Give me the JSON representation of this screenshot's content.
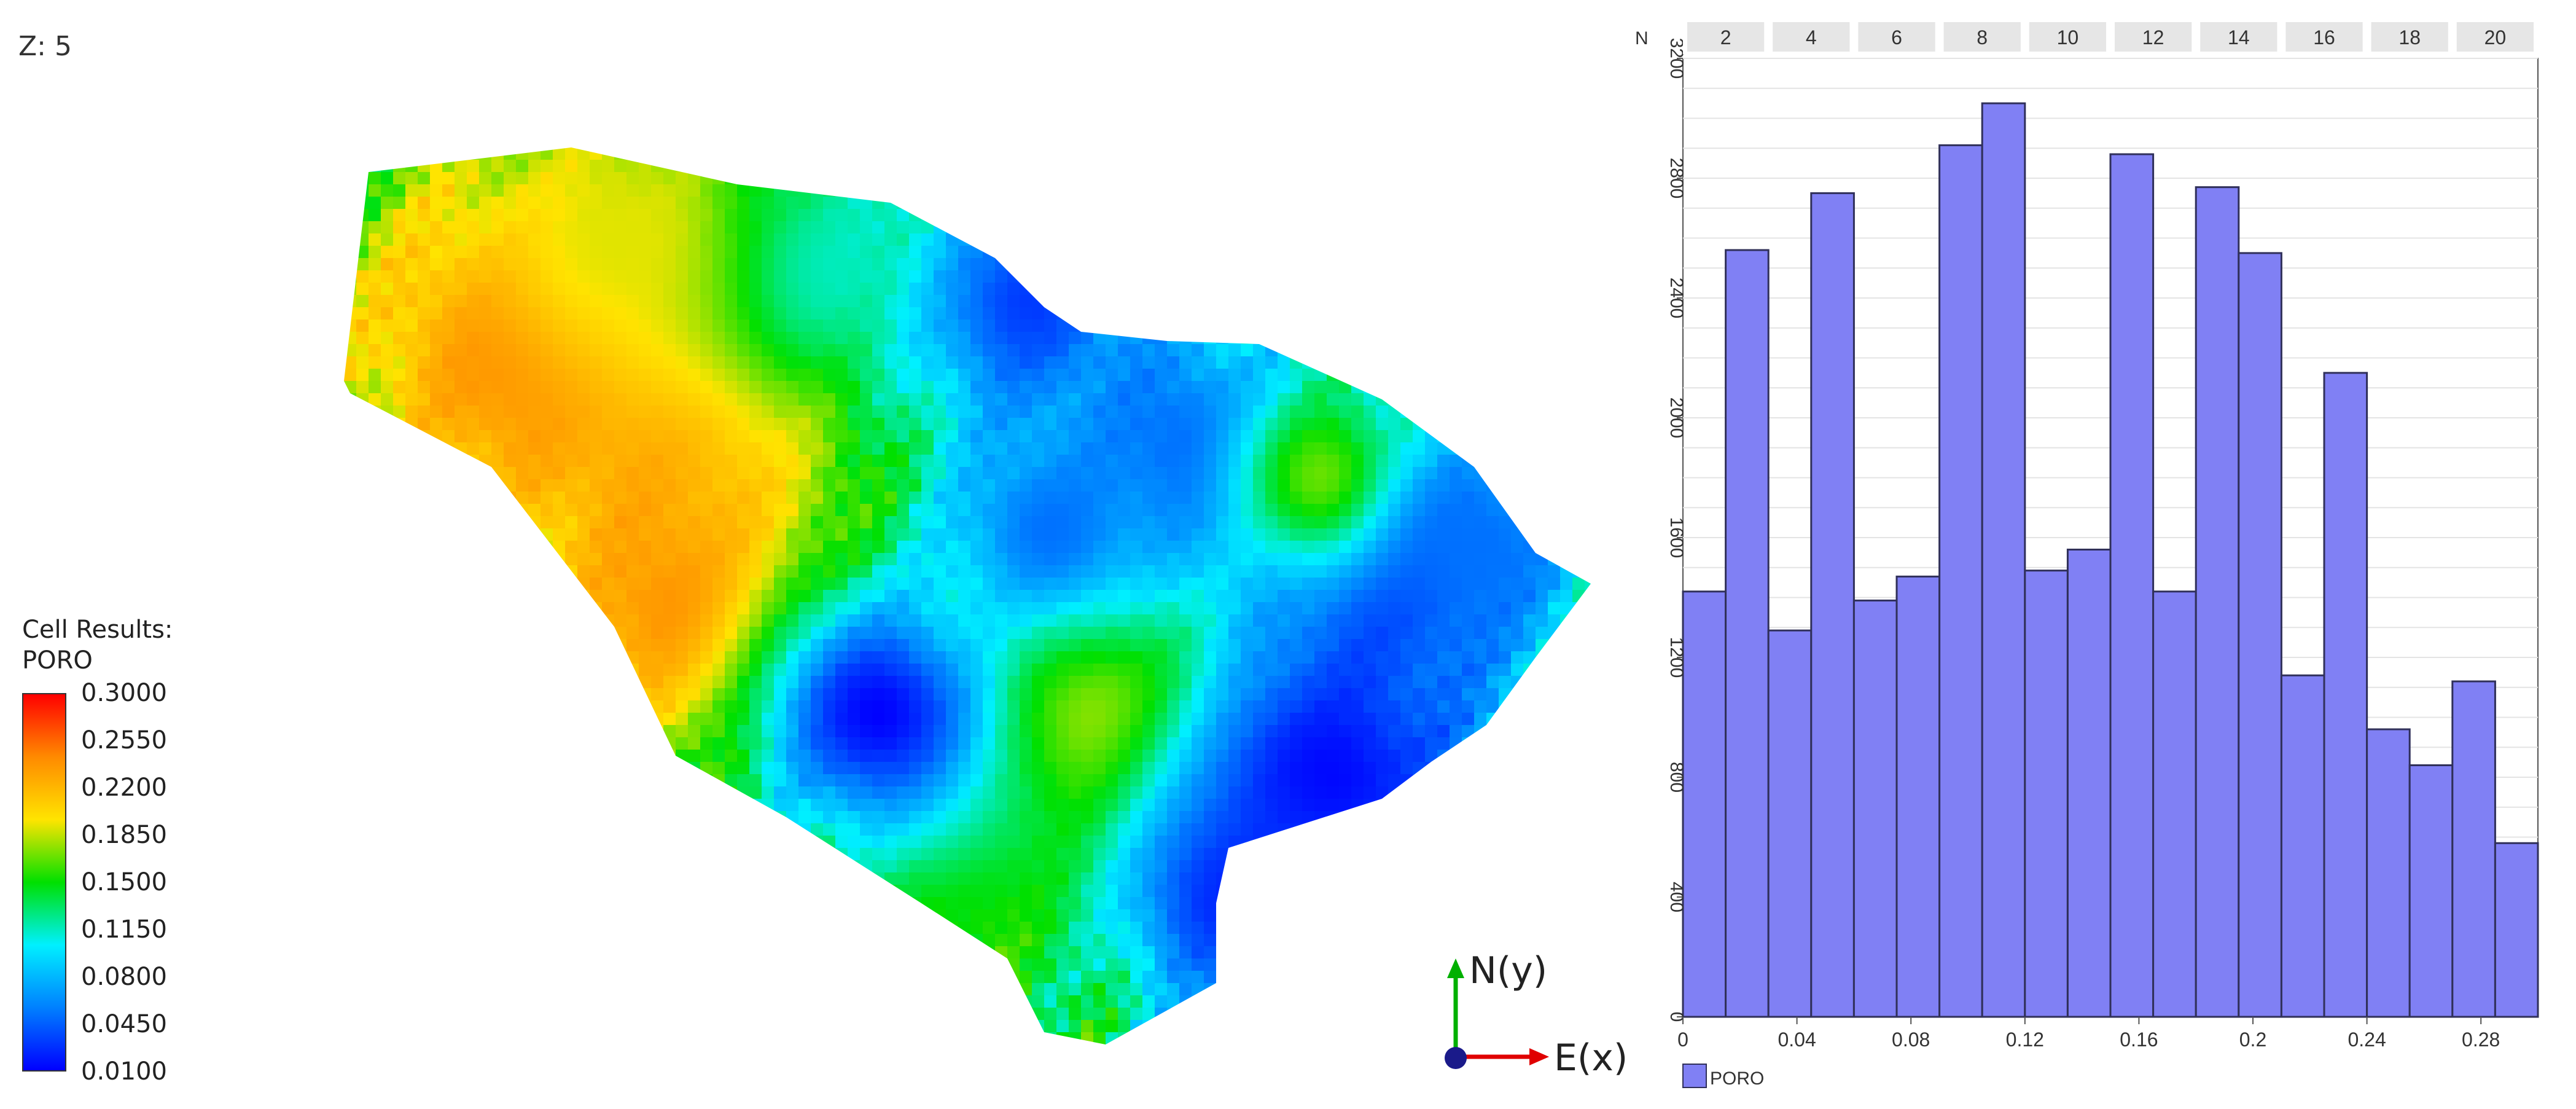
{
  "viewer": {
    "z_label": "Z: 5",
    "legend": {
      "title_line1": "Cell Results:",
      "title_line2": "PORO",
      "ticks": [
        "0.3000",
        "0.2550",
        "0.2200",
        "0.1850",
        "0.1500",
        "0.1150",
        "0.0800",
        "0.0450",
        "0.0100"
      ],
      "colors": [
        "#ff0000",
        "#ff8a00",
        "#ffe400",
        "#00e000",
        "#00f0ff",
        "#0080ff",
        "#0000ff"
      ]
    },
    "axes": {
      "north_label": "N(y)",
      "east_label": "E(x)"
    }
  },
  "chart_data": {
    "type": "bar",
    "title": "",
    "y_axis_label": "N",
    "x_ticks": [
      "0",
      "0.04",
      "0.08",
      "0.12",
      "0.16",
      "0.2",
      "0.24",
      "0.28"
    ],
    "x_tick_values": [
      0,
      0.04,
      0.08,
      0.12,
      0.16,
      0.2,
      0.24,
      0.28
    ],
    "y_ticks": [
      "0",
      "400",
      "800",
      "1200",
      "1600",
      "2000",
      "2400",
      "2800",
      "3200"
    ],
    "xlim": [
      0,
      0.3
    ],
    "ylim": [
      0,
      3200
    ],
    "top_axis_ticks": [
      "2",
      "4",
      "6",
      "8",
      "10",
      "12",
      "14",
      "16",
      "18",
      "20"
    ],
    "bin_edges": [
      0,
      0.015,
      0.03,
      0.045,
      0.06,
      0.075,
      0.09,
      0.105,
      0.12,
      0.135,
      0.15,
      0.165,
      0.18,
      0.195,
      0.21,
      0.225,
      0.24,
      0.255,
      0.27,
      0.285,
      0.3
    ],
    "series": [
      {
        "name": "PORO",
        "values": [
          1420,
          2560,
          1290,
          2750,
          1390,
          1470,
          2910,
          3050,
          1490,
          1560,
          2880,
          1420,
          2770,
          2550,
          1140,
          2150,
          960,
          840,
          1120,
          580
        ]
      }
    ],
    "legend_position": "bottom-left",
    "bar_color": "#8080f4",
    "grid": true
  }
}
